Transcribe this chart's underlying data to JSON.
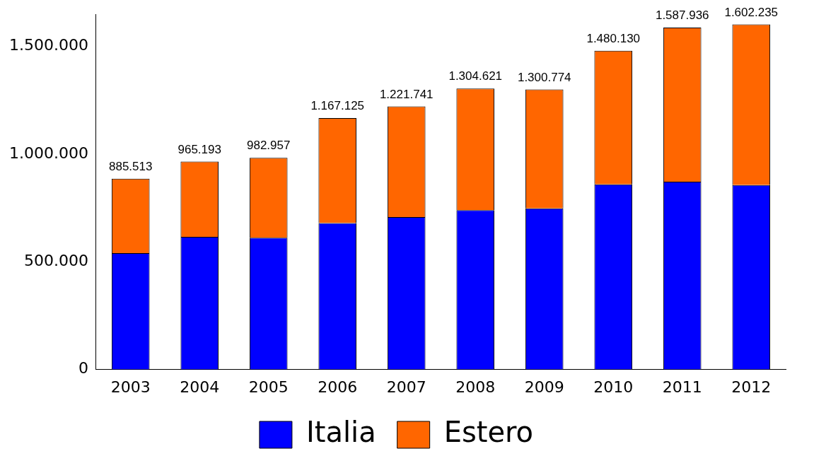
{
  "chart_data": {
    "type": "bar",
    "stacked": true,
    "categories": [
      "2003",
      "2004",
      "2005",
      "2006",
      "2007",
      "2008",
      "2009",
      "2010",
      "2011",
      "2012"
    ],
    "series": [
      {
        "name": "Italia",
        "color": "#0000ff",
        "values": [
          540000,
          616000,
          612000,
          680000,
          708000,
          740000,
          748000,
          860000,
          872000,
          856000
        ]
      },
      {
        "name": "Estero",
        "color": "#ff6600",
        "values": [
          345513,
          349193,
          370957,
          487125,
          513741,
          564621,
          552774,
          620130,
          715936,
          746235
        ]
      }
    ],
    "totals": [
      "885.513",
      "965.193",
      "982.957",
      "1.167.125",
      "1.221.741",
      "1.304.621",
      "1.300.774",
      "1.480.130",
      "1.587.936",
      "1.602.235"
    ],
    "ylim": [
      0,
      1650000
    ],
    "yticks": [
      0,
      {
        "value": 500000,
        "label": "500.000"
      },
      {
        "value": 1000000,
        "label": "1.000.000"
      },
      {
        "value": 1500000,
        "label": "1.500.000"
      }
    ],
    "grid": false,
    "legend": "bottom"
  }
}
